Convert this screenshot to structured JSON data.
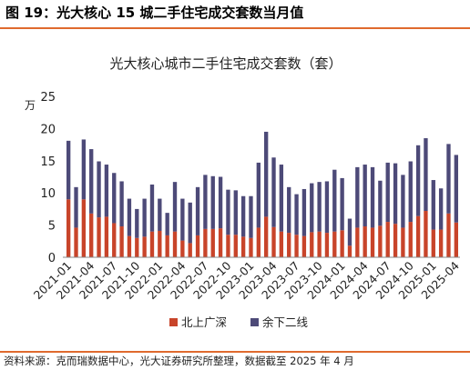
{
  "figure_title": "图 19：光大核心 15 城二手住宅成交套数当月值",
  "source_note": "资料来源：克而瑞数据中心，光大证券研究所整理，数据截至 2025 年 4 月",
  "colors": {
    "series_a": "#c8442a",
    "series_b": "#4d4a78",
    "rule": "#e06a2e",
    "axis": "#888888"
  },
  "chart_data": {
    "type": "bar",
    "stacked": true,
    "title": "光大核心城市二手住宅成交套数（套）",
    "ylabel": "万",
    "xlabel": "",
    "ylim": [
      0,
      25
    ],
    "yticks": [
      0,
      5,
      10,
      15,
      20,
      25
    ],
    "legend_position": "bottom",
    "grid": false,
    "categories": [
      "2021-01",
      "2021-02",
      "2021-03",
      "2021-04",
      "2021-05",
      "2021-06",
      "2021-07",
      "2021-08",
      "2021-09",
      "2021-10",
      "2021-11",
      "2021-12",
      "2022-01",
      "2022-02",
      "2022-03",
      "2022-04",
      "2022-05",
      "2022-06",
      "2022-07",
      "2022-08",
      "2022-09",
      "2022-10",
      "2022-11",
      "2022-12",
      "2023-01",
      "2023-02",
      "2023-03",
      "2023-04",
      "2023-05",
      "2023-06",
      "2023-07",
      "2023-08",
      "2023-09",
      "2023-10",
      "2023-11",
      "2023-12",
      "2024-01",
      "2024-02",
      "2024-03",
      "2024-04",
      "2024-05",
      "2024-06",
      "2024-07",
      "2024-08",
      "2024-09",
      "2024-10",
      "2024-11",
      "2024-12",
      "2025-01",
      "2025-02",
      "2025-03",
      "2025-04"
    ],
    "tick_labels": [
      "2021-01",
      "2021-04",
      "2021-07",
      "2021-10",
      "2022-01",
      "2022-04",
      "2022-07",
      "2022-10",
      "2023-01",
      "2023-04",
      "2023-07",
      "2023-10",
      "2024-01",
      "2024-04",
      "2024-07",
      "2024-10",
      "2025-01",
      "2025-04"
    ],
    "series": [
      {
        "name": "北上广深",
        "values": [
          9.0,
          4.6,
          9.0,
          6.8,
          6.2,
          6.3,
          5.3,
          4.8,
          3.3,
          3.0,
          3.2,
          4.0,
          4.1,
          3.4,
          4.0,
          2.6,
          2.2,
          3.4,
          4.4,
          4.4,
          4.5,
          3.5,
          3.5,
          3.2,
          3.0,
          4.6,
          6.3,
          4.7,
          4.0,
          3.8,
          3.5,
          3.3,
          3.9,
          4.0,
          3.8,
          4.0,
          4.2,
          1.8,
          4.6,
          4.8,
          4.6,
          4.9,
          5.5,
          5.2,
          4.6,
          5.5,
          6.4,
          7.2,
          4.3,
          4.3,
          6.8,
          5.4
        ]
      },
      {
        "name": "余下二线",
        "values": [
          9.1,
          6.3,
          9.3,
          10.0,
          8.7,
          8.1,
          7.8,
          7.0,
          5.8,
          4.5,
          5.9,
          7.3,
          5.0,
          3.5,
          7.7,
          6.5,
          6.3,
          7.5,
          8.4,
          8.2,
          8.0,
          7.0,
          6.9,
          6.3,
          6.5,
          10.1,
          13.2,
          10.8,
          10.4,
          7.1,
          6.3,
          7.3,
          7.6,
          7.7,
          8.0,
          9.6,
          8.1,
          4.2,
          9.4,
          9.6,
          9.4,
          7.0,
          9.2,
          9.4,
          8.2,
          9.4,
          11.0,
          11.3,
          7.7,
          6.4,
          10.8,
          10.5
        ]
      }
    ]
  }
}
